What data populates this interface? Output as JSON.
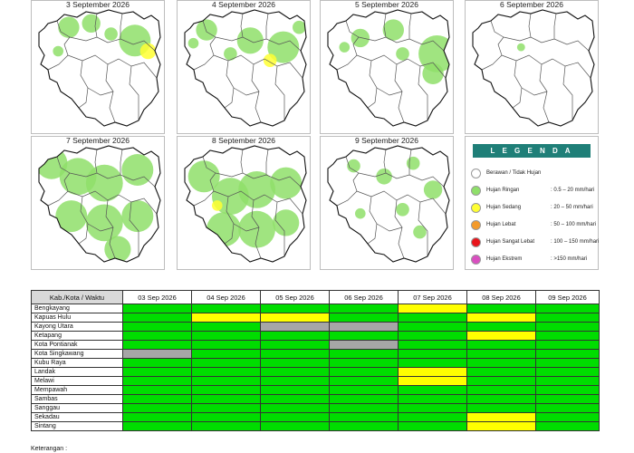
{
  "maps": [
    {
      "title": "3 September 2026",
      "blobs": [
        [
          0.28,
          0.2,
          0.08,
          "g"
        ],
        [
          0.45,
          0.17,
          0.07,
          "g"
        ],
        [
          0.78,
          0.3,
          0.12,
          "g"
        ],
        [
          0.88,
          0.38,
          0.06,
          "y"
        ],
        [
          0.6,
          0.25,
          0.05,
          "g"
        ],
        [
          0.2,
          0.38,
          0.04,
          "g"
        ]
      ]
    },
    {
      "title": "4 September 2026",
      "blobs": [
        [
          0.22,
          0.22,
          0.08,
          "g"
        ],
        [
          0.55,
          0.3,
          0.1,
          "g"
        ],
        [
          0.8,
          0.35,
          0.12,
          "g"
        ],
        [
          0.7,
          0.45,
          0.05,
          "y"
        ],
        [
          0.4,
          0.4,
          0.05,
          "g"
        ],
        [
          0.12,
          0.32,
          0.04,
          "g"
        ],
        [
          0.92,
          0.2,
          0.05,
          "g"
        ]
      ]
    },
    {
      "title": "5 September 2026",
      "blobs": [
        [
          0.3,
          0.28,
          0.07,
          "g"
        ],
        [
          0.55,
          0.22,
          0.08,
          "g"
        ],
        [
          0.88,
          0.4,
          0.14,
          "g"
        ],
        [
          0.85,
          0.55,
          0.08,
          "g"
        ],
        [
          0.62,
          0.4,
          0.05,
          "g"
        ],
        [
          0.18,
          0.35,
          0.04,
          "g"
        ]
      ]
    },
    {
      "title": "6 September 2026",
      "blobs": [
        [
          0.42,
          0.35,
          0.03,
          "g"
        ]
      ]
    },
    {
      "title": "7 September 2026",
      "blobs": [
        [
          0.15,
          0.2,
          0.12,
          "g"
        ],
        [
          0.35,
          0.3,
          0.14,
          "g"
        ],
        [
          0.55,
          0.35,
          0.14,
          "g"
        ],
        [
          0.8,
          0.25,
          0.12,
          "g"
        ],
        [
          0.3,
          0.6,
          0.12,
          "g"
        ],
        [
          0.55,
          0.65,
          0.14,
          "g"
        ],
        [
          0.8,
          0.6,
          0.12,
          "g"
        ],
        [
          0.65,
          0.85,
          0.1,
          "g"
        ]
      ]
    },
    {
      "title": "8 September 2026",
      "blobs": [
        [
          0.2,
          0.3,
          0.12,
          "g"
        ],
        [
          0.4,
          0.45,
          0.14,
          "g"
        ],
        [
          0.6,
          0.4,
          0.14,
          "g"
        ],
        [
          0.82,
          0.35,
          0.12,
          "g"
        ],
        [
          0.35,
          0.7,
          0.13,
          "g"
        ],
        [
          0.6,
          0.7,
          0.14,
          "g"
        ],
        [
          0.82,
          0.65,
          0.1,
          "g"
        ],
        [
          0.3,
          0.52,
          0.04,
          "y"
        ]
      ]
    },
    {
      "title": "9 September 2026",
      "blobs": [
        [
          0.25,
          0.22,
          0.05,
          "g"
        ],
        [
          0.48,
          0.3,
          0.06,
          "g"
        ],
        [
          0.7,
          0.2,
          0.05,
          "g"
        ],
        [
          0.85,
          0.4,
          0.07,
          "g"
        ],
        [
          0.62,
          0.55,
          0.05,
          "g"
        ],
        [
          0.3,
          0.58,
          0.04,
          "g"
        ],
        [
          0.75,
          0.72,
          0.05,
          "g"
        ]
      ]
    }
  ],
  "legend": {
    "heading": "L E G E N D A",
    "items": [
      {
        "name": "Berawan / Tidak Hujan",
        "range": "",
        "color": "#ffffff"
      },
      {
        "name": "Hujan Ringan",
        "range": ": 0.5 – 20 mm/hari",
        "color": "#8fdf6a"
      },
      {
        "name": "Hujan Sedang",
        "range": ": 20 – 50 mm/hari",
        "color": "#ffff33"
      },
      {
        "name": "Hujan Lebat",
        "range": ": 50 – 100 mm/hari",
        "color": "#f39a2b"
      },
      {
        "name": "Hujan Sangat Lebat",
        "range": ": 100 – 150 mm/hari",
        "color": "#e8141b"
      },
      {
        "name": "Hujan Ekstrem",
        "range": ": >150 mm/hari",
        "color": "#d94fc0"
      }
    ]
  },
  "table": {
    "corner": "Kab./Kota / Waktu",
    "dates": [
      "03 Sep 2026",
      "04 Sep 2026",
      "05 Sep 2026",
      "06 Sep 2026",
      "07 Sep 2026",
      "08 Sep 2026",
      "09 Sep 2026"
    ],
    "rows": [
      {
        "name": "Bengkayang",
        "cells": [
          "g",
          "g",
          "g",
          "g",
          "y",
          "g",
          "g"
        ]
      },
      {
        "name": "Kapuas Hulu",
        "cells": [
          "g",
          "y",
          "y",
          "g",
          "g",
          "y",
          "g"
        ]
      },
      {
        "name": "Kayong Utara",
        "cells": [
          "g",
          "g",
          "x",
          "x",
          "g",
          "g",
          "g"
        ]
      },
      {
        "name": "Ketapang",
        "cells": [
          "g",
          "g",
          "g",
          "g",
          "g",
          "y",
          "g"
        ]
      },
      {
        "name": "Kota Pontianak",
        "cells": [
          "g",
          "g",
          "g",
          "x",
          "g",
          "g",
          "g"
        ]
      },
      {
        "name": "Kota Singkawang",
        "cells": [
          "x",
          "g",
          "g",
          "g",
          "g",
          "g",
          "g"
        ]
      },
      {
        "name": "Kubu Raya",
        "cells": [
          "g",
          "g",
          "g",
          "g",
          "g",
          "g",
          "g"
        ]
      },
      {
        "name": "Landak",
        "cells": [
          "g",
          "g",
          "g",
          "g",
          "y",
          "g",
          "g"
        ]
      },
      {
        "name": "Melawi",
        "cells": [
          "g",
          "g",
          "g",
          "g",
          "y",
          "g",
          "g"
        ]
      },
      {
        "name": "Mempawah",
        "cells": [
          "g",
          "g",
          "g",
          "g",
          "g",
          "g",
          "g"
        ]
      },
      {
        "name": "Sambas",
        "cells": [
          "g",
          "g",
          "g",
          "g",
          "g",
          "g",
          "g"
        ]
      },
      {
        "name": "Sanggau",
        "cells": [
          "g",
          "g",
          "g",
          "g",
          "g",
          "g",
          "g"
        ]
      },
      {
        "name": "Sekadau",
        "cells": [
          "g",
          "g",
          "g",
          "g",
          "g",
          "y",
          "g"
        ]
      },
      {
        "name": "Sintang",
        "cells": [
          "g",
          "g",
          "g",
          "g",
          "g",
          "y",
          "g"
        ]
      }
    ],
    "colors": {
      "g": "#00dd00",
      "y": "#ffff00",
      "x": "#a6a6a6"
    }
  },
  "note": "Keterangan :"
}
